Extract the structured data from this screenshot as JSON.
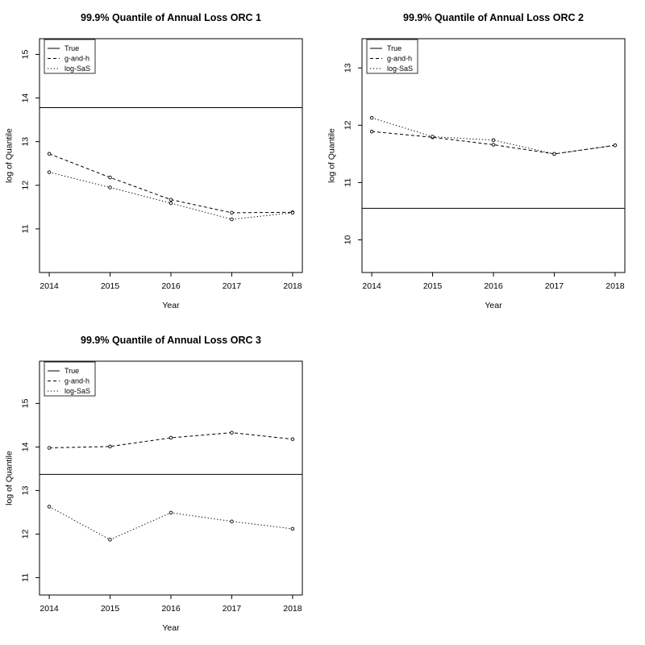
{
  "style": {
    "background": "#ffffff",
    "foreground": "#000000"
  },
  "chart_data": [
    {
      "type": "line",
      "title": "99.9% Quantile of Annual Loss ORC 1",
      "xlabel": "Year",
      "ylabel": "log of Quantile",
      "x": [
        2014,
        2015,
        2016,
        2017,
        2018
      ],
      "xticks": [
        "2014",
        "2015",
        "2016",
        "2017",
        "2018"
      ],
      "yticks": [
        11,
        12,
        13,
        14,
        15
      ],
      "xlim": [
        2013.84,
        2018.16
      ],
      "ylim": [
        10.0,
        15.36
      ],
      "grid": false,
      "legend": {
        "position": "top-left",
        "entries": [
          {
            "label": "True",
            "style": "solid"
          },
          {
            "label": "g-and-h",
            "style": "dashed"
          },
          {
            "label": "log-SaS",
            "style": "dotted"
          }
        ]
      },
      "series": [
        {
          "name": "True",
          "type": "hline",
          "style": "solid",
          "value": 13.78
        },
        {
          "name": "g-and-h",
          "type": "line-points",
          "style": "dashed",
          "values": [
            12.72,
            12.18,
            11.67,
            11.37,
            11.38
          ]
        },
        {
          "name": "log-SaS",
          "type": "line-points",
          "style": "dotted",
          "values": [
            12.3,
            11.95,
            11.59,
            11.22,
            11.37
          ]
        }
      ]
    },
    {
      "type": "line",
      "title": "99.9% Quantile of Annual Loss ORC 2",
      "xlabel": "Year",
      "ylabel": "log of Quantile",
      "x": [
        2014,
        2015,
        2016,
        2017,
        2018
      ],
      "xticks": [
        "2014",
        "2015",
        "2016",
        "2017",
        "2018"
      ],
      "yticks": [
        10,
        11,
        12,
        13
      ],
      "xlim": [
        2013.84,
        2018.16
      ],
      "ylim": [
        9.43,
        13.51
      ],
      "grid": false,
      "legend": {
        "position": "top-left",
        "entries": [
          {
            "label": "True",
            "style": "solid"
          },
          {
            "label": "g-and-h",
            "style": "dashed"
          },
          {
            "label": "log-SaS",
            "style": "dotted"
          }
        ]
      },
      "series": [
        {
          "name": "True",
          "type": "hline",
          "style": "solid",
          "value": 10.55
        },
        {
          "name": "g-and-h",
          "type": "line-points",
          "style": "dashed",
          "values": [
            11.89,
            11.79,
            11.66,
            11.5,
            11.65
          ]
        },
        {
          "name": "log-SaS",
          "type": "line-points",
          "style": "dotted",
          "values": [
            12.13,
            11.8,
            11.74,
            11.5,
            11.65
          ]
        }
      ]
    },
    {
      "type": "line",
      "title": "99.9% Quantile of Annual Loss ORC 3",
      "xlabel": "Year",
      "ylabel": "log of Quantile",
      "x": [
        2014,
        2015,
        2016,
        2017,
        2018
      ],
      "xticks": [
        "2014",
        "2015",
        "2016",
        "2017",
        "2018"
      ],
      "yticks": [
        11,
        12,
        13,
        14,
        15
      ],
      "xlim": [
        2013.84,
        2018.16
      ],
      "ylim": [
        10.6,
        15.97
      ],
      "grid": false,
      "legend": {
        "position": "top-left",
        "entries": [
          {
            "label": "True",
            "style": "solid"
          },
          {
            "label": "g-and-h",
            "style": "dashed"
          },
          {
            "label": "log-SaS",
            "style": "dotted"
          }
        ]
      },
      "series": [
        {
          "name": "True",
          "type": "hline",
          "style": "solid",
          "value": 13.37
        },
        {
          "name": "g-and-h",
          "type": "line-points",
          "style": "dashed",
          "values": [
            13.98,
            14.01,
            14.21,
            14.33,
            14.18
          ]
        },
        {
          "name": "log-SaS",
          "type": "line-points",
          "style": "dotted",
          "values": [
            12.63,
            11.87,
            12.49,
            12.29,
            12.12
          ]
        }
      ]
    }
  ]
}
